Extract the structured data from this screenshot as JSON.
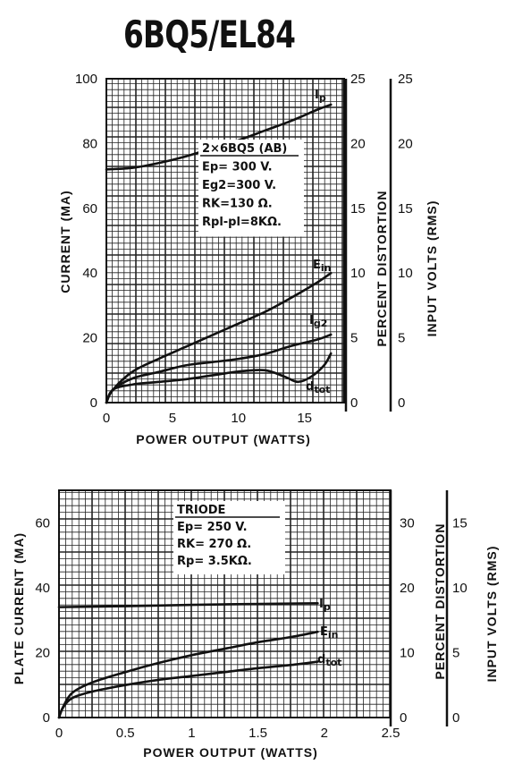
{
  "title": "6BQ5/EL84",
  "chart_data": [
    {
      "type": "line",
      "annotation": [
        "2×6BQ5 (AB)",
        "Ep= 300 V.",
        "Eg2=300 V.",
        "RK=130 Ω.",
        "Rpl-pl=8KΩ."
      ],
      "xlabel": "POWER OUTPUT (WATTS)",
      "ylabel": "CURRENT (MA)",
      "y2label": "PERCENT DISTORTION",
      "y3label": "INPUT VOLTS (RMS)",
      "xlim": [
        0,
        18
      ],
      "ylim": [
        0,
        100
      ],
      "y2lim": [
        0,
        25
      ],
      "y3lim": [
        0,
        25
      ],
      "xticks": [
        "0",
        "5",
        "10",
        "15"
      ],
      "yticks": [
        "0",
        "20",
        "40",
        "60",
        "80",
        "100"
      ],
      "y2ticks": [
        "0",
        "5",
        "10",
        "15",
        "20",
        "25"
      ],
      "y3ticks": [
        "0",
        "5",
        "10",
        "15",
        "20",
        "25"
      ],
      "grid": true,
      "series": [
        {
          "name": "Ip",
          "axis": "left",
          "x": [
            0,
            2,
            4,
            6,
            8,
            10,
            12,
            14,
            16,
            17
          ],
          "values": [
            72,
            72.5,
            74,
            76,
            78.5,
            81,
            84,
            87,
            90.5,
            92
          ]
        },
        {
          "name": "Ein",
          "axis": "right",
          "x": [
            0,
            0.5,
            2,
            4,
            6,
            8,
            10,
            12,
            14,
            16,
            17
          ],
          "values": [
            0,
            1.0,
            2.4,
            3.4,
            4.3,
            5.2,
            6.1,
            7.0,
            8.1,
            9.3,
            10
          ]
        },
        {
          "name": "Ig2",
          "axis": "left",
          "x": [
            0,
            0.5,
            2,
            4,
            6,
            8,
            10,
            12,
            14,
            16,
            17
          ],
          "values": [
            0,
            4,
            7.5,
            9.5,
            11.5,
            12.5,
            13.5,
            15,
            17.5,
            19.5,
            21
          ]
        },
        {
          "name": "dtot",
          "axis": "right",
          "x": [
            0,
            0.5,
            2,
            4,
            6,
            8,
            10,
            12,
            13.5,
            14.5,
            15.5,
            16.5,
            17
          ],
          "values": [
            0,
            1.0,
            1.4,
            1.6,
            1.8,
            2.1,
            2.4,
            2.5,
            2.0,
            1.6,
            2.0,
            2.9,
            3.8
          ]
        }
      ]
    },
    {
      "type": "line",
      "annotation": [
        "TRIODE",
        "Ep= 250 V.",
        "RK= 270 Ω.",
        "Rp= 3.5KΩ."
      ],
      "xlabel": "POWER OUTPUT (WATTS)",
      "ylabel": "PLATE CURRENT (MA)",
      "y2label": "PERCENT DISTORTION",
      "y3label": "INPUT VOLTS (RMS)",
      "xlim": [
        0,
        2.5
      ],
      "ylim": [
        0,
        70
      ],
      "y2lim": [
        0,
        35
      ],
      "y3lim": [
        0,
        17.5
      ],
      "xticks": [
        "0",
        "0.5",
        "1",
        "1.5",
        "2",
        "2.5"
      ],
      "yticks": [
        "0",
        "20",
        "40",
        "60"
      ],
      "y2ticks": [
        "0",
        "10",
        "20",
        "30"
      ],
      "y3ticks": [
        "0",
        "5",
        "10",
        "15"
      ],
      "grid": true,
      "series": [
        {
          "name": "Ip",
          "axis": "left",
          "x": [
            0,
            0.5,
            1.0,
            1.5,
            1.95
          ],
          "values": [
            34,
            34.3,
            34.7,
            35,
            35.2
          ]
        },
        {
          "name": "Ein",
          "axis": "far-right",
          "x": [
            0,
            0.03,
            0.1,
            0.25,
            0.5,
            0.75,
            1.0,
            1.25,
            1.5,
            1.75,
            1.95
          ],
          "values": [
            0,
            0.8,
            1.9,
            2.7,
            3.5,
            4.2,
            4.8,
            5.3,
            5.8,
            6.2,
            6.6
          ]
        },
        {
          "name": "dtot",
          "axis": "right",
          "x": [
            0,
            0.03,
            0.1,
            0.25,
            0.5,
            0.75,
            1.0,
            1.25,
            1.5,
            1.75,
            1.95
          ],
          "values": [
            0,
            1.5,
            3.0,
            4.0,
            5.0,
            5.8,
            6.4,
            7.0,
            7.6,
            8.1,
            8.6
          ]
        }
      ]
    }
  ]
}
